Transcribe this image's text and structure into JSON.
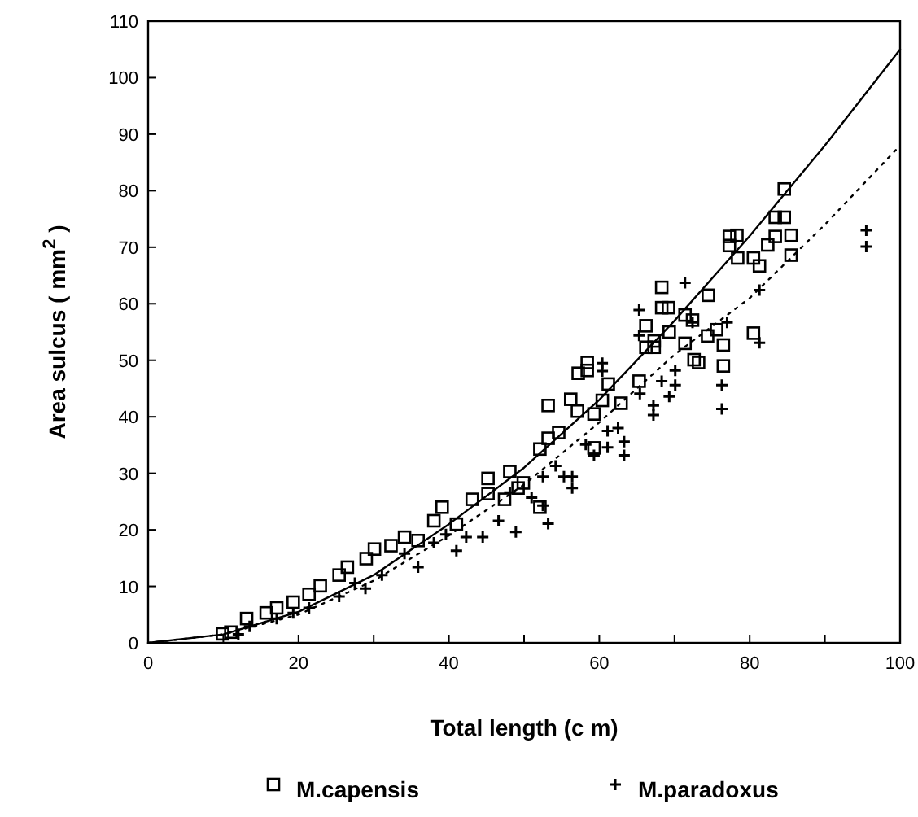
{
  "chart_data": {
    "type": "scatter",
    "xlabel": "Total length (c m)",
    "ylabel": "Area sulcus ( mm$^{2}$ )",
    "xlim": [
      0,
      100
    ],
    "ylim": [
      0,
      110
    ],
    "xticks": [
      0,
      {
        "value": 10,
        "label": null
      },
      20,
      {
        "value": 30,
        "label": null
      },
      40,
      {
        "value": 50,
        "label": null
      },
      60,
      {
        "value": 70,
        "label": null
      },
      80,
      {
        "value": 90,
        "label": null
      },
      100
    ],
    "yticks": [
      0,
      10,
      20,
      30,
      40,
      50,
      60,
      70,
      80,
      90,
      100,
      110
    ],
    "grid": false,
    "legend": "bottom",
    "series": [
      {
        "name": "M.capensis",
        "marker": "square",
        "color": "#000000",
        "x": [
          84.6,
          83.4,
          84.6,
          85.5,
          83.4,
          82.4,
          85.5,
          80.5,
          81.3,
          78.4,
          77.3,
          78.3,
          77.3,
          80.5,
          74.5,
          68.3,
          68.3,
          69.2,
          66.2,
          66.2,
          67.3,
          67.3,
          69.3,
          71.4,
          72.4,
          71.4,
          74.4,
          75.6,
          76.5,
          76.5,
          73.2,
          72.6,
          65.3,
          61.2,
          58.4,
          58.4,
          57.2,
          53.2,
          56.2,
          57.1,
          59.3,
          60.4,
          62.9,
          53.2,
          54.6,
          52.1,
          59.3,
          48.1,
          45.2,
          45.2,
          49.2,
          52.1,
          43.1,
          39.1,
          38.0,
          34.1,
          30.1,
          29.0,
          26.5,
          25.4,
          22.9,
          19.3,
          15.7,
          13.1,
          11.0,
          9.9,
          17.1,
          21.4,
          32.3,
          35.9,
          41.0,
          47.4,
          49.9
        ],
        "values": [
          80.3,
          75.3,
          75.3,
          72.1,
          71.9,
          70.4,
          68.6,
          68.1,
          66.7,
          68.1,
          71.9,
          72.1,
          70.3,
          54.8,
          61.5,
          62.9,
          59.3,
          59.3,
          56.1,
          52.3,
          52.3,
          53.4,
          55.0,
          53.0,
          57.1,
          58.0,
          54.3,
          55.4,
          52.7,
          49.0,
          49.6,
          50.1,
          46.3,
          45.8,
          49.6,
          48.2,
          47.7,
          42.0,
          43.1,
          41.0,
          40.5,
          42.9,
          42.4,
          36.2,
          37.2,
          34.3,
          34.5,
          30.3,
          29.1,
          26.4,
          27.4,
          24.0,
          25.4,
          24.0,
          21.6,
          18.7,
          16.6,
          14.9,
          13.4,
          12.0,
          10.1,
          7.2,
          5.3,
          4.3,
          1.9,
          1.6,
          6.2,
          8.6,
          17.2,
          18.1,
          21.0,
          25.4,
          28.3
        ]
      },
      {
        "name": "M.paradoxus",
        "marker": "cross",
        "color": "#000000",
        "x": [
          95.5,
          95.5,
          81.3,
          81.3,
          77.0,
          71.4,
          65.3,
          65.3,
          72.4,
          76.3,
          76.3,
          70.1,
          70.1,
          68.3,
          69.3,
          67.2,
          67.2,
          65.4,
          60.4,
          60.4,
          63.3,
          63.3,
          59.3,
          61.1,
          56.4,
          56.4,
          54.2,
          53.2,
          48.9,
          52.5,
          44.5,
          41.0,
          35.9,
          31.1,
          28.9,
          25.4,
          21.4,
          17.1,
          13.5,
          12.0,
          51.0,
          48.1,
          42.3,
          38.0,
          34.1,
          55.3,
          58.2,
          61.1,
          62.5,
          46.6,
          39.6,
          27.5,
          19.3,
          52.5
        ],
        "values": [
          73.0,
          70.1,
          62.4,
          53.1,
          56.7,
          63.7,
          58.9,
          54.4,
          56.7,
          45.6,
          41.4,
          48.2,
          45.6,
          46.3,
          43.6,
          42.0,
          40.3,
          44.1,
          49.5,
          48.1,
          35.6,
          33.2,
          33.2,
          34.6,
          29.4,
          27.4,
          31.3,
          21.1,
          19.6,
          24.3,
          18.7,
          16.3,
          13.4,
          12.0,
          9.6,
          8.2,
          6.2,
          4.3,
          2.9,
          1.5,
          25.7,
          26.6,
          18.7,
          17.7,
          15.8,
          29.4,
          35.1,
          37.5,
          38.0,
          21.6,
          19.2,
          10.6,
          5.3,
          29.4
        ]
      },
      {
        "type": "line",
        "line_style": "solid",
        "color": "#000000",
        "x": [
          0,
          10,
          20,
          30,
          40,
          50,
          60,
          70,
          80,
          90,
          100
        ],
        "values": [
          0,
          1.5,
          5.5,
          12,
          21,
          31,
          43,
          57,
          72,
          88,
          105
        ]
      },
      {
        "type": "line",
        "line_style": "dotted",
        "color": "#000000",
        "x": [
          0,
          10,
          20,
          30,
          40,
          50,
          60,
          70,
          80,
          90,
          100
        ],
        "values": [
          0,
          1.5,
          5,
          11,
          19,
          28,
          39,
          51,
          61,
          74,
          88
        ]
      }
    ]
  }
}
